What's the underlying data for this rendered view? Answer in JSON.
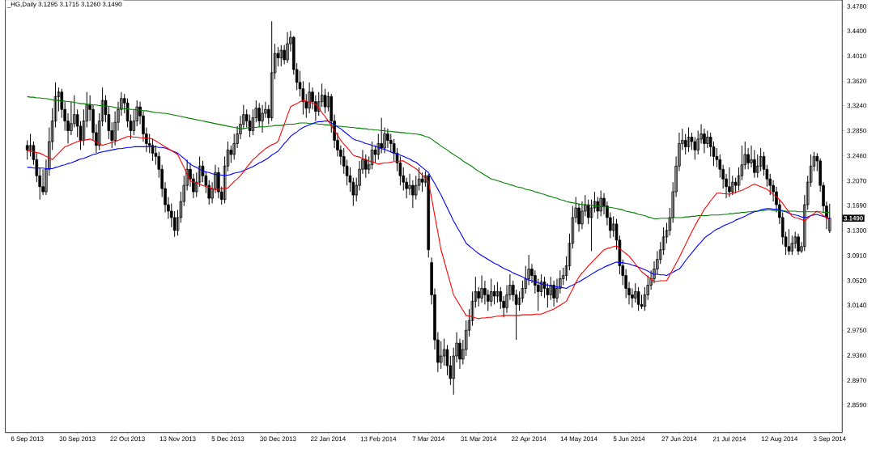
{
  "chart_data": {
    "type": "candlestick",
    "title": "_HG,Daily  3.1295 3.1715 3.1260 3.1490",
    "categories": [
      "6 Sep 2013",
      null,
      null,
      null,
      null,
      null,
      null,
      null,
      null,
      null,
      null,
      null,
      null,
      null,
      null,
      null,
      "30 Sep 2013",
      null,
      null,
      null,
      null,
      null,
      null,
      null,
      null,
      null,
      null,
      null,
      null,
      null,
      null,
      null,
      "22 Oct 2013",
      null,
      null,
      null,
      null,
      null,
      null,
      null,
      null,
      null,
      null,
      null,
      null,
      null,
      null,
      null,
      "13 Nov 2013",
      null,
      null,
      null,
      null,
      null,
      null,
      null,
      null,
      null,
      null,
      null,
      null,
      null,
      null,
      null,
      "5 Dec 2013",
      null,
      null,
      null,
      null,
      null,
      null,
      null,
      null,
      null,
      null,
      null,
      null,
      null,
      null,
      null,
      "30 Dec 2013",
      null,
      null,
      null,
      null,
      null,
      null,
      null,
      null,
      null,
      null,
      null,
      null,
      null,
      null,
      null,
      "22 Jan 2014",
      null,
      null,
      null,
      null,
      null,
      null,
      null,
      null,
      null,
      null,
      null,
      null,
      null,
      null,
      null,
      "13 Feb 2014",
      null,
      null,
      null,
      null,
      null,
      null,
      null,
      null,
      null,
      null,
      null,
      null,
      null,
      null,
      null,
      "7 Mar 2014",
      null,
      null,
      null,
      null,
      null,
      null,
      null,
      null,
      null,
      null,
      null,
      null,
      null,
      null,
      null,
      "31 Mar 2014",
      null,
      null,
      null,
      null,
      null,
      null,
      null,
      null,
      null,
      null,
      null,
      null,
      null,
      null,
      null,
      "22 Apr 2014",
      null,
      null,
      null,
      null,
      null,
      null,
      null,
      null,
      null,
      null,
      null,
      null,
      null,
      null,
      null,
      "14 May 2014",
      null,
      null,
      null,
      null,
      null,
      null,
      null,
      null,
      null,
      null,
      null,
      null,
      null,
      null,
      null,
      "5 Jun 2014",
      null,
      null,
      null,
      null,
      null,
      null,
      null,
      null,
      null,
      null,
      null,
      null,
      null,
      null,
      null,
      "27 Jun 2014",
      null,
      null,
      null,
      null,
      null,
      null,
      null,
      null,
      null,
      null,
      null,
      null,
      null,
      null,
      null,
      "21 Jul 2014",
      null,
      null,
      null,
      null,
      null,
      null,
      null,
      null,
      null,
      null,
      null,
      null,
      null,
      null,
      null,
      "12 Aug 2014",
      null,
      null,
      null,
      null,
      null,
      null,
      null,
      null,
      null,
      null,
      null,
      null,
      null,
      null,
      null,
      "3 Sep 2014"
    ],
    "ohlc": [
      [
        3.262,
        3.27,
        3.24,
        3.255
      ],
      [
        3.255,
        3.28,
        3.245,
        3.262
      ],
      [
        3.262,
        3.268,
        3.232,
        3.24
      ],
      [
        3.24,
        3.25,
        3.205,
        3.215
      ],
      [
        3.215,
        3.228,
        3.178,
        3.198
      ],
      [
        3.198,
        3.225,
        3.185,
        3.19
      ],
      [
        3.19,
        3.24,
        3.185,
        3.225
      ],
      [
        3.225,
        3.29,
        3.215,
        3.268
      ],
      [
        3.268,
        3.32,
        3.255,
        3.3
      ],
      [
        3.3,
        3.36,
        3.29,
        3.338
      ],
      [
        3.338,
        3.352,
        3.315,
        3.345
      ],
      [
        3.345,
        3.35,
        3.305,
        3.318
      ],
      [
        3.318,
        3.33,
        3.285,
        3.3
      ],
      [
        3.3,
        3.312,
        3.265,
        3.285
      ],
      [
        3.285,
        3.33,
        3.278,
        3.296
      ],
      [
        3.296,
        3.34,
        3.29,
        3.31
      ],
      [
        3.31,
        3.318,
        3.275,
        3.292
      ],
      [
        3.292,
        3.3,
        3.255,
        3.27
      ],
      [
        3.27,
        3.318,
        3.262,
        3.3
      ],
      [
        3.3,
        3.345,
        3.29,
        3.325
      ],
      [
        3.325,
        3.34,
        3.3,
        3.318
      ],
      [
        3.318,
        3.325,
        3.27,
        3.282
      ],
      [
        3.282,
        3.295,
        3.25,
        3.262
      ],
      [
        3.262,
        3.312,
        3.255,
        3.3
      ],
      [
        3.3,
        3.352,
        3.292,
        3.332
      ],
      [
        3.332,
        3.34,
        3.298,
        3.31
      ],
      [
        3.31,
        3.322,
        3.272,
        3.285
      ],
      [
        3.285,
        3.298,
        3.258,
        3.27
      ],
      [
        3.27,
        3.315,
        3.262,
        3.298
      ],
      [
        3.298,
        3.33,
        3.285,
        3.318
      ],
      [
        3.318,
        3.345,
        3.308,
        3.335
      ],
      [
        3.335,
        3.342,
        3.312,
        3.328
      ],
      [
        3.328,
        3.335,
        3.29,
        3.3
      ],
      [
        3.3,
        3.31,
        3.272,
        3.285
      ],
      [
        3.285,
        3.318,
        3.278,
        3.3
      ],
      [
        3.3,
        3.332,
        3.292,
        3.322
      ],
      [
        3.322,
        3.33,
        3.295,
        3.308
      ],
      [
        3.308,
        3.315,
        3.268,
        3.28
      ],
      [
        3.28,
        3.29,
        3.252,
        3.265
      ],
      [
        3.265,
        3.28,
        3.25,
        3.262
      ],
      [
        3.262,
        3.272,
        3.238,
        3.25
      ],
      [
        3.25,
        3.262,
        3.232,
        3.245
      ],
      [
        3.245,
        3.252,
        3.212,
        3.225
      ],
      [
        3.225,
        3.232,
        3.182,
        3.195
      ],
      [
        3.195,
        3.205,
        3.158,
        3.17
      ],
      [
        3.17,
        3.182,
        3.148,
        3.16
      ],
      [
        3.16,
        3.172,
        3.135,
        3.15
      ],
      [
        3.15,
        3.16,
        3.12,
        3.13
      ],
      [
        3.13,
        3.162,
        3.122,
        3.15
      ],
      [
        3.15,
        3.19,
        3.142,
        3.175
      ],
      [
        3.175,
        3.215,
        3.168,
        3.2
      ],
      [
        3.2,
        3.24,
        3.192,
        3.225
      ],
      [
        3.225,
        3.235,
        3.198,
        3.21
      ],
      [
        3.21,
        3.218,
        3.18,
        3.19
      ],
      [
        3.19,
        3.22,
        3.182,
        3.205
      ],
      [
        3.205,
        3.245,
        3.198,
        3.23
      ],
      [
        3.23,
        3.238,
        3.205,
        3.215
      ],
      [
        3.215,
        3.222,
        3.188,
        3.2
      ],
      [
        3.2,
        3.208,
        3.17,
        3.18
      ],
      [
        3.18,
        3.205,
        3.172,
        3.195
      ],
      [
        3.195,
        3.232,
        3.188,
        3.22
      ],
      [
        3.22,
        3.228,
        3.18,
        3.19
      ],
      [
        3.19,
        3.198,
        3.17,
        3.178
      ],
      [
        3.178,
        3.245,
        3.172,
        3.23
      ],
      [
        3.23,
        3.268,
        3.222,
        3.255
      ],
      [
        3.255,
        3.262,
        3.235,
        3.248
      ],
      [
        3.248,
        3.28,
        3.24,
        3.265
      ],
      [
        3.265,
        3.292,
        3.258,
        3.28
      ],
      [
        3.28,
        3.308,
        3.272,
        3.295
      ],
      [
        3.295,
        3.325,
        3.288,
        3.31
      ],
      [
        3.31,
        3.318,
        3.29,
        3.3
      ],
      [
        3.3,
        3.31,
        3.275,
        3.285
      ],
      [
        3.285,
        3.318,
        3.278,
        3.305
      ],
      [
        3.305,
        3.332,
        3.298,
        3.32
      ],
      [
        3.32,
        3.328,
        3.29,
        3.3
      ],
      [
        3.3,
        3.325,
        3.282,
        3.312
      ],
      [
        3.312,
        3.33,
        3.305,
        3.318
      ],
      [
        3.318,
        3.325,
        3.295,
        3.305
      ],
      [
        3.305,
        3.455,
        3.3,
        3.375
      ],
      [
        3.375,
        3.42,
        3.365,
        3.405
      ],
      [
        3.405,
        3.415,
        3.385,
        3.398
      ],
      [
        3.398,
        3.418,
        3.385,
        3.41
      ],
      [
        3.41,
        3.418,
        3.388,
        3.395
      ],
      [
        3.395,
        3.438,
        3.39,
        3.42
      ],
      [
        3.42,
        3.44,
        3.408,
        3.43
      ],
      [
        3.43,
        3.432,
        3.372,
        3.38
      ],
      [
        3.38,
        3.39,
        3.348,
        3.36
      ],
      [
        3.36,
        3.378,
        3.338,
        3.35
      ],
      [
        3.35,
        3.362,
        3.31,
        3.33
      ],
      [
        3.33,
        3.342,
        3.305,
        3.32
      ],
      [
        3.32,
        3.36,
        3.312,
        3.345
      ],
      [
        3.345,
        3.352,
        3.318,
        3.33
      ],
      [
        3.33,
        3.34,
        3.3,
        3.315
      ],
      [
        3.315,
        3.345,
        3.308,
        3.33
      ],
      [
        3.33,
        3.358,
        3.322,
        3.34
      ],
      [
        3.34,
        3.35,
        3.312,
        3.322
      ],
      [
        3.322,
        3.345,
        3.315,
        3.338
      ],
      [
        3.338,
        3.342,
        3.282,
        3.3
      ],
      [
        3.3,
        3.31,
        3.258,
        3.27
      ],
      [
        3.27,
        3.282,
        3.245,
        3.255
      ],
      [
        3.255,
        3.262,
        3.232,
        3.245
      ],
      [
        3.245,
        3.258,
        3.218,
        3.23
      ],
      [
        3.23,
        3.24,
        3.2,
        3.215
      ],
      [
        3.215,
        3.228,
        3.19,
        3.205
      ],
      [
        3.205,
        3.212,
        3.168,
        3.185
      ],
      [
        3.185,
        3.212,
        3.175,
        3.2
      ],
      [
        3.2,
        3.238,
        3.192,
        3.225
      ],
      [
        3.225,
        3.255,
        3.218,
        3.24
      ],
      [
        3.24,
        3.248,
        3.212,
        3.225
      ],
      [
        3.225,
        3.245,
        3.218,
        3.232
      ],
      [
        3.232,
        3.268,
        3.225,
        3.255
      ],
      [
        3.255,
        3.262,
        3.235,
        3.248
      ],
      [
        3.248,
        3.28,
        3.24,
        3.265
      ],
      [
        3.265,
        3.305,
        3.25,
        3.258
      ],
      [
        3.258,
        3.29,
        3.25,
        3.28
      ],
      [
        3.28,
        3.288,
        3.258,
        3.27
      ],
      [
        3.27,
        3.28,
        3.252,
        3.265
      ],
      [
        3.265,
        3.272,
        3.238,
        3.25
      ],
      [
        3.25,
        3.258,
        3.222,
        3.235
      ],
      [
        3.235,
        3.245,
        3.2,
        3.215
      ],
      [
        3.215,
        3.228,
        3.192,
        3.205
      ],
      [
        3.205,
        3.212,
        3.18,
        3.195
      ],
      [
        3.195,
        3.218,
        3.185,
        3.2
      ],
      [
        3.2,
        3.208,
        3.165,
        3.185
      ],
      [
        3.185,
        3.215,
        3.178,
        3.2
      ],
      [
        3.2,
        3.228,
        3.192,
        3.21
      ],
      [
        3.21,
        3.22,
        3.19,
        3.205
      ],
      [
        3.205,
        3.222,
        3.198,
        3.215
      ],
      [
        3.215,
        3.218,
        3.088,
        3.1
      ],
      [
        3.08,
        3.088,
        3.015,
        3.03
      ],
      [
        3.03,
        3.04,
        2.945,
        2.96
      ],
      [
        2.96,
        2.972,
        2.91,
        2.925
      ],
      [
        2.925,
        2.958,
        2.915,
        2.935
      ],
      [
        2.935,
        2.962,
        2.92,
        2.945
      ],
      [
        2.945,
        2.952,
        2.905,
        2.92
      ],
      [
        2.92,
        2.935,
        2.89,
        2.9
      ],
      [
        2.9,
        2.948,
        2.875,
        2.935
      ],
      [
        2.935,
        2.972,
        2.925,
        2.955
      ],
      [
        2.955,
        2.962,
        2.915,
        2.93
      ],
      [
        2.93,
        2.96,
        2.922,
        2.945
      ],
      [
        2.945,
        2.99,
        2.935,
        2.975
      ],
      [
        2.975,
        3.008,
        2.965,
        2.99
      ],
      [
        2.99,
        3.035,
        2.982,
        3.02
      ],
      [
        3.02,
        3.058,
        3.01,
        3.035
      ],
      [
        3.035,
        3.042,
        3.012,
        3.025
      ],
      [
        3.025,
        3.06,
        3.018,
        3.04
      ],
      [
        3.04,
        3.052,
        3.015,
        3.03
      ],
      [
        3.03,
        3.038,
        3.005,
        3.02
      ],
      [
        3.02,
        3.055,
        3.012,
        3.035
      ],
      [
        3.035,
        3.045,
        3.015,
        3.028
      ],
      [
        3.028,
        3.05,
        3.018,
        3.035
      ],
      [
        3.035,
        3.042,
        3.008,
        3.02
      ],
      [
        3.02,
        3.028,
        2.995,
        3.01
      ],
      [
        3.01,
        3.045,
        3.002,
        3.03
      ],
      [
        3.03,
        3.062,
        3.022,
        3.045
      ],
      [
        3.045,
        3.052,
        3.02,
        3.03
      ],
      [
        3.03,
        3.038,
        2.96,
        3.015
      ],
      [
        3.015,
        3.035,
        3.005,
        3.025
      ],
      [
        3.025,
        3.052,
        3.018,
        3.04
      ],
      [
        3.04,
        3.075,
        3.032,
        3.055
      ],
      [
        3.055,
        3.092,
        3.045,
        3.07
      ],
      [
        3.07,
        3.078,
        3.048,
        3.06
      ],
      [
        3.06,
        3.068,
        3.032,
        3.045
      ],
      [
        3.045,
        3.055,
        3.005,
        3.035
      ],
      [
        3.035,
        3.062,
        3.028,
        3.05
      ],
      [
        3.05,
        3.058,
        3.025,
        3.04
      ],
      [
        3.04,
        3.048,
        3.01,
        3.03
      ],
      [
        3.03,
        3.058,
        3.022,
        3.045
      ],
      [
        3.045,
        3.052,
        3.012,
        3.025
      ],
      [
        3.025,
        3.055,
        3.018,
        3.04
      ],
      [
        3.04,
        3.068,
        3.032,
        3.055
      ],
      [
        3.055,
        3.072,
        3.045,
        3.06
      ],
      [
        3.06,
        3.09,
        3.052,
        3.075
      ],
      [
        3.075,
        3.125,
        3.068,
        3.11
      ],
      [
        3.11,
        3.168,
        3.102,
        3.15
      ],
      [
        3.15,
        3.182,
        3.142,
        3.165
      ],
      [
        3.165,
        3.172,
        3.128,
        3.14
      ],
      [
        3.14,
        3.175,
        3.132,
        3.16
      ],
      [
        3.16,
        3.185,
        3.152,
        3.17
      ],
      [
        3.17,
        3.178,
        3.14,
        3.15
      ],
      [
        3.15,
        3.178,
        3.098,
        3.165
      ],
      [
        3.165,
        3.19,
        3.158,
        3.175
      ],
      [
        3.175,
        3.182,
        3.148,
        3.16
      ],
      [
        3.16,
        3.192,
        3.152,
        3.18
      ],
      [
        3.18,
        3.188,
        3.155,
        3.168
      ],
      [
        3.168,
        3.175,
        3.138,
        3.15
      ],
      [
        3.15,
        3.158,
        3.118,
        3.13
      ],
      [
        3.13,
        3.152,
        3.12,
        3.14
      ],
      [
        3.14,
        3.148,
        3.1,
        3.115
      ],
      [
        3.115,
        3.122,
        3.062,
        3.075
      ],
      [
        3.075,
        3.085,
        3.045,
        3.06
      ],
      [
        3.06,
        3.07,
        3.025,
        3.04
      ],
      [
        3.04,
        3.05,
        3.015,
        3.03
      ],
      [
        3.03,
        3.04,
        3.01,
        3.025
      ],
      [
        3.025,
        3.048,
        3.018,
        3.035
      ],
      [
        3.035,
        3.042,
        3.005,
        3.015
      ],
      [
        3.015,
        3.03,
        3.008,
        3.012
      ],
      [
        3.012,
        3.042,
        3.005,
        3.03
      ],
      [
        3.03,
        3.06,
        3.022,
        3.045
      ],
      [
        3.045,
        3.068,
        3.038,
        3.055
      ],
      [
        3.055,
        3.082,
        3.048,
        3.07
      ],
      [
        3.07,
        3.098,
        3.062,
        3.085
      ],
      [
        3.085,
        3.112,
        3.078,
        3.1
      ],
      [
        3.1,
        3.135,
        3.092,
        3.12
      ],
      [
        3.12,
        3.142,
        3.11,
        3.13
      ],
      [
        3.13,
        3.165,
        3.122,
        3.15
      ],
      [
        3.15,
        3.205,
        3.142,
        3.19
      ],
      [
        3.19,
        3.245,
        3.182,
        3.23
      ],
      [
        3.23,
        3.282,
        3.222,
        3.265
      ],
      [
        3.265,
        3.288,
        3.255,
        3.27
      ],
      [
        3.27,
        3.28,
        3.248,
        3.26
      ],
      [
        3.26,
        3.29,
        3.252,
        3.275
      ],
      [
        3.275,
        3.282,
        3.255,
        3.268
      ],
      [
        3.268,
        3.275,
        3.24,
        3.255
      ],
      [
        3.255,
        3.285,
        3.248,
        3.272
      ],
      [
        3.272,
        3.295,
        3.265,
        3.28
      ],
      [
        3.28,
        3.288,
        3.25,
        3.265
      ],
      [
        3.265,
        3.285,
        3.258,
        3.275
      ],
      [
        3.275,
        3.282,
        3.245,
        3.26
      ],
      [
        3.26,
        3.268,
        3.23,
        3.245
      ],
      [
        3.245,
        3.258,
        3.228,
        3.24
      ],
      [
        3.24,
        3.248,
        3.212,
        3.225
      ],
      [
        3.225,
        3.232,
        3.195,
        3.21
      ],
      [
        3.21,
        3.218,
        3.18,
        3.198
      ],
      [
        3.198,
        3.228,
        3.182,
        3.19
      ],
      [
        3.19,
        3.215,
        3.185,
        3.205
      ],
      [
        3.205,
        3.212,
        3.188,
        3.2
      ],
      [
        3.2,
        3.228,
        3.192,
        3.215
      ],
      [
        3.215,
        3.262,
        3.208,
        3.232
      ],
      [
        3.232,
        3.268,
        3.225,
        3.248
      ],
      [
        3.248,
        3.258,
        3.225,
        3.235
      ],
      [
        3.235,
        3.262,
        3.228,
        3.24
      ],
      [
        3.24,
        3.255,
        3.212,
        3.22
      ],
      [
        3.22,
        3.248,
        3.212,
        3.23
      ],
      [
        3.23,
        3.258,
        3.222,
        3.245
      ],
      [
        3.245,
        3.252,
        3.215,
        3.225
      ],
      [
        3.225,
        3.232,
        3.198,
        3.21
      ],
      [
        3.21,
        3.218,
        3.185,
        3.2
      ],
      [
        3.2,
        3.208,
        3.175,
        3.19
      ],
      [
        3.19,
        3.198,
        3.158,
        3.17
      ],
      [
        3.17,
        3.178,
        3.14,
        3.15
      ],
      [
        3.15,
        3.158,
        3.108,
        3.12
      ],
      [
        3.12,
        3.128,
        3.092,
        3.105
      ],
      [
        3.105,
        3.132,
        3.092,
        3.098
      ],
      [
        3.098,
        3.122,
        3.092,
        3.11
      ],
      [
        3.11,
        3.128,
        3.102,
        3.12
      ],
      [
        3.12,
        3.125,
        3.092,
        3.098
      ],
      [
        3.098,
        3.112,
        3.095,
        3.105
      ],
      [
        3.105,
        3.185,
        3.098,
        3.17
      ],
      [
        3.17,
        3.215,
        3.162,
        3.205
      ],
      [
        3.205,
        3.248,
        3.198,
        3.23
      ],
      [
        3.23,
        3.252,
        3.222,
        3.245
      ],
      [
        3.245,
        3.25,
        3.222,
        3.238
      ],
      [
        3.238,
        3.242,
        3.19,
        3.2
      ],
      [
        3.2,
        3.205,
        3.158,
        3.168
      ],
      [
        3.168,
        3.175,
        3.132,
        3.15
      ],
      [
        3.1295,
        3.1715,
        3.126,
        3.149
      ]
    ],
    "series": [
      {
        "type": "line",
        "color": "#008000",
        "values": [
          3.338,
          3.337,
          3.337,
          3.336,
          3.336,
          3.335,
          3.335,
          3.334,
          3.333,
          3.332,
          3.332,
          3.331,
          3.331,
          3.33,
          3.33,
          3.329,
          3.328,
          3.327,
          3.327,
          3.326,
          3.326,
          3.325,
          3.325,
          3.324,
          3.324,
          3.323,
          3.323,
          3.322,
          3.321,
          3.32,
          3.32,
          3.319,
          3.319,
          3.318,
          3.318,
          3.317,
          3.317,
          3.316,
          3.316,
          3.315,
          3.314,
          3.313,
          3.313,
          3.312,
          3.312,
          3.311,
          3.31,
          3.309,
          3.308,
          3.307,
          3.306,
          3.305,
          3.304,
          3.303,
          3.302,
          3.301,
          3.3,
          3.299,
          3.298,
          3.297,
          3.296,
          3.295,
          3.294,
          3.293,
          3.292,
          3.291,
          3.29,
          3.289,
          3.288,
          3.288,
          3.289,
          3.29,
          3.29,
          3.29,
          3.291,
          3.291,
          3.291,
          3.292,
          3.292,
          3.293,
          3.293,
          3.293,
          3.294,
          3.295,
          3.295,
          3.295,
          3.296,
          3.297,
          3.297,
          3.297,
          3.296,
          3.296,
          3.296,
          3.295,
          3.295,
          3.294,
          3.294,
          3.293,
          3.293,
          3.292,
          3.292,
          3.291,
          3.291,
          3.29,
          3.29,
          3.289,
          3.289,
          3.288,
          3.288,
          3.287,
          3.287,
          3.286,
          3.286,
          3.285,
          3.285,
          3.284,
          3.284,
          3.283,
          3.283,
          3.282,
          3.282,
          3.281,
          3.281,
          3.28,
          3.28,
          3.279,
          3.278,
          3.276,
          3.275,
          3.272,
          3.268,
          3.265,
          3.261,
          3.258,
          3.255,
          3.251,
          3.248,
          3.245,
          3.242,
          3.238,
          3.235,
          3.232,
          3.229,
          3.225,
          3.222,
          3.219,
          3.216,
          3.213,
          3.21,
          3.209,
          3.207,
          3.206,
          3.204,
          3.203,
          3.201,
          3.2,
          3.198,
          3.197,
          3.196,
          3.194,
          3.193,
          3.192,
          3.19,
          3.189,
          3.187,
          3.186,
          3.184,
          3.183,
          3.181,
          3.18,
          3.178,
          3.177,
          3.175,
          3.174,
          3.173,
          3.172,
          3.171,
          3.17,
          3.17,
          3.169,
          3.169,
          3.168,
          3.168,
          3.167,
          3.167,
          3.166,
          3.166,
          3.165,
          3.164,
          3.163,
          3.162,
          3.16,
          3.159,
          3.158,
          3.157,
          3.155,
          3.154,
          3.153,
          3.151,
          3.15,
          3.148,
          3.148,
          3.149,
          3.149,
          3.149,
          3.149,
          3.15,
          3.15,
          3.15,
          3.15,
          3.151,
          3.151,
          3.152,
          3.152,
          3.153,
          3.153,
          3.153,
          3.153,
          3.154,
          3.154,
          3.154,
          3.154,
          3.155,
          3.155,
          3.156,
          3.156,
          3.157,
          3.157,
          3.158,
          3.158,
          3.159,
          3.159,
          3.16,
          3.16,
          3.161,
          3.161,
          3.162,
          3.162,
          3.161,
          3.161,
          3.161,
          3.161,
          3.16,
          3.16,
          3.16,
          3.16,
          3.159,
          3.159,
          3.159,
          3.159,
          3.159,
          3.159,
          3.159,
          3.159,
          3.158,
          3.158,
          3.158
        ]
      },
      {
        "type": "line",
        "color": "#0000ff",
        "values": [
          3.228,
          3.228,
          3.227,
          3.227,
          3.227,
          3.227,
          3.226,
          3.226,
          3.226,
          3.228,
          3.229,
          3.231,
          3.232,
          3.234,
          3.235,
          3.237,
          3.239,
          3.241,
          3.242,
          3.244,
          3.246,
          3.248,
          3.249,
          3.251,
          3.252,
          3.253,
          3.254,
          3.255,
          3.256,
          3.257,
          3.257,
          3.258,
          3.259,
          3.259,
          3.26,
          3.26,
          3.26,
          3.26,
          3.26,
          3.26,
          3.26,
          3.26,
          3.259,
          3.259,
          3.258,
          3.256,
          3.254,
          3.252,
          3.25,
          3.246,
          3.242,
          3.237,
          3.233,
          3.23,
          3.228,
          3.225,
          3.222,
          3.221,
          3.22,
          3.218,
          3.217,
          3.217,
          3.216,
          3.216,
          3.216,
          3.217,
          3.219,
          3.22,
          3.221,
          3.223,
          3.225,
          3.227,
          3.229,
          3.232,
          3.235,
          3.237,
          3.24,
          3.243,
          3.247,
          3.25,
          3.253,
          3.259,
          3.265,
          3.27,
          3.276,
          3.28,
          3.283,
          3.287,
          3.29,
          3.292,
          3.294,
          3.296,
          3.298,
          3.299,
          3.299,
          3.3,
          3.3,
          3.297,
          3.294,
          3.291,
          3.288,
          3.284,
          3.28,
          3.276,
          3.272,
          3.27,
          3.269,
          3.267,
          3.265,
          3.264,
          3.262,
          3.261,
          3.259,
          3.257,
          3.256,
          3.254,
          3.252,
          3.25,
          3.249,
          3.247,
          3.245,
          3.243,
          3.241,
          3.238,
          3.236,
          3.232,
          3.228,
          3.224,
          3.22,
          3.211,
          3.203,
          3.194,
          3.185,
          3.175,
          3.165,
          3.155,
          3.145,
          3.136,
          3.128,
          3.119,
          3.11,
          3.106,
          3.102,
          3.098,
          3.094,
          3.091,
          3.088,
          3.085,
          3.082,
          3.079,
          3.077,
          3.074,
          3.071,
          3.069,
          3.067,
          3.064,
          3.062,
          3.06,
          3.058,
          3.055,
          3.053,
          3.052,
          3.05,
          3.049,
          3.047,
          3.046,
          3.045,
          3.044,
          3.043,
          3.042,
          3.042,
          3.041,
          3.04,
          3.043,
          3.045,
          3.048,
          3.05,
          3.053,
          3.056,
          3.059,
          3.062,
          3.065,
          3.068,
          3.07,
          3.073,
          3.075,
          3.077,
          3.079,
          3.081,
          3.08,
          3.08,
          3.079,
          3.078,
          3.076,
          3.075,
          3.073,
          3.071,
          3.069,
          3.067,
          3.064,
          3.062,
          3.062,
          3.061,
          3.061,
          3.06,
          3.063,
          3.065,
          3.068,
          3.07,
          3.076,
          3.083,
          3.089,
          3.095,
          3.101,
          3.107,
          3.112,
          3.118,
          3.122,
          3.125,
          3.129,
          3.132,
          3.134,
          3.137,
          3.139,
          3.141,
          3.143,
          3.146,
          3.148,
          3.15,
          3.152,
          3.155,
          3.157,
          3.159,
          3.16,
          3.162,
          3.163,
          3.164,
          3.164,
          3.163,
          3.163,
          3.162,
          3.16,
          3.159,
          3.157,
          3.155,
          3.154,
          3.153,
          3.151,
          3.15,
          3.151,
          3.153,
          3.154,
          3.155,
          3.153,
          3.152,
          3.15,
          3.148
        ]
      },
      {
        "type": "line",
        "color": "#ff0000",
        "values": [
          3.254,
          3.253,
          3.252,
          3.251,
          3.25,
          3.248,
          3.245,
          3.243,
          3.24,
          3.245,
          3.25,
          3.255,
          3.26,
          3.262,
          3.264,
          3.266,
          3.268,
          3.269,
          3.27,
          3.271,
          3.272,
          3.27,
          3.267,
          3.265,
          3.262,
          3.264,
          3.265,
          3.267,
          3.268,
          3.27,
          3.272,
          3.274,
          3.276,
          3.276,
          3.275,
          3.275,
          3.274,
          3.274,
          3.273,
          3.273,
          3.272,
          3.269,
          3.266,
          3.263,
          3.26,
          3.257,
          3.254,
          3.251,
          3.248,
          3.238,
          3.228,
          3.217,
          3.207,
          3.205,
          3.204,
          3.202,
          3.2,
          3.198,
          3.197,
          3.195,
          3.193,
          3.194,
          3.195,
          3.195,
          3.196,
          3.201,
          3.206,
          3.21,
          3.215,
          3.221,
          3.228,
          3.234,
          3.24,
          3.244,
          3.249,
          3.253,
          3.257,
          3.26,
          3.263,
          3.265,
          3.268,
          3.282,
          3.295,
          3.309,
          3.322,
          3.325,
          3.327,
          3.33,
          3.332,
          3.331,
          3.329,
          3.328,
          3.326,
          3.32,
          3.313,
          3.307,
          3.3,
          3.293,
          3.285,
          3.278,
          3.27,
          3.264,
          3.259,
          3.253,
          3.247,
          3.245,
          3.244,
          3.242,
          3.24,
          3.238,
          3.237,
          3.235,
          3.233,
          3.234,
          3.235,
          3.235,
          3.236,
          3.237,
          3.237,
          3.238,
          3.238,
          3.235,
          3.232,
          3.229,
          3.226,
          3.221,
          3.216,
          3.211,
          3.206,
          3.18,
          3.153,
          3.127,
          3.1,
          3.083,
          3.065,
          3.048,
          3.03,
          3.022,
          3.014,
          3.006,
          2.998,
          2.997,
          2.996,
          2.994,
          2.993,
          2.994,
          2.994,
          2.995,
          2.995,
          2.996,
          2.997,
          2.997,
          2.998,
          2.998,
          2.998,
          2.998,
          2.998,
          2.998,
          2.999,
          2.999,
          2.999,
          2.999,
          3.0,
          3.0,
          3.0,
          3.002,
          3.004,
          3.006,
          3.008,
          3.011,
          3.014,
          3.017,
          3.02,
          3.03,
          3.039,
          3.049,
          3.058,
          3.064,
          3.069,
          3.075,
          3.08,
          3.085,
          3.09,
          3.095,
          3.1,
          3.102,
          3.103,
          3.105,
          3.106,
          3.102,
          3.098,
          3.094,
          3.09,
          3.084,
          3.078,
          3.072,
          3.066,
          3.062,
          3.058,
          3.055,
          3.051,
          3.051,
          3.052,
          3.052,
          3.052,
          3.061,
          3.07,
          3.079,
          3.088,
          3.098,
          3.108,
          3.118,
          3.128,
          3.137,
          3.146,
          3.154,
          3.163,
          3.169,
          3.176,
          3.182,
          3.188,
          3.188,
          3.187,
          3.187,
          3.186,
          3.188,
          3.189,
          3.191,
          3.192,
          3.195,
          3.197,
          3.2,
          3.202,
          3.2,
          3.198,
          3.196,
          3.194,
          3.19,
          3.186,
          3.182,
          3.178,
          3.172,
          3.165,
          3.159,
          3.152,
          3.15,
          3.149,
          3.147,
          3.145,
          3.149,
          3.153,
          3.156,
          3.16,
          3.157,
          3.153,
          3.15,
          3.146
        ]
      }
    ],
    "ylim": [
      2.816,
      3.488
    ],
    "yticks": [
      {
        "value": 3.478,
        "label": "3.4780"
      },
      {
        "value": 3.44,
        "label": "3.4400"
      },
      {
        "value": 3.401,
        "label": "3.4010"
      },
      {
        "value": 3.362,
        "label": "3.3620"
      },
      {
        "value": 3.324,
        "label": "3.3240"
      },
      {
        "value": 3.285,
        "label": "3.2850"
      },
      {
        "value": 3.246,
        "label": "3.2460"
      },
      {
        "value": 3.207,
        "label": "3.2070"
      },
      {
        "value": 3.169,
        "label": "3.1690"
      },
      {
        "value": 3.13,
        "label": "3.1300"
      },
      {
        "value": 3.091,
        "label": "3.0910"
      },
      {
        "value": 3.052,
        "label": "3.0520"
      },
      {
        "value": 3.014,
        "label": "3.0140"
      },
      {
        "value": 2.975,
        "label": "2.9750"
      },
      {
        "value": 2.936,
        "label": "2.9360"
      },
      {
        "value": 2.897,
        "label": "2.8970"
      },
      {
        "value": 2.859,
        "label": "2.8590"
      }
    ],
    "annotations": [
      "3.1490"
    ]
  }
}
